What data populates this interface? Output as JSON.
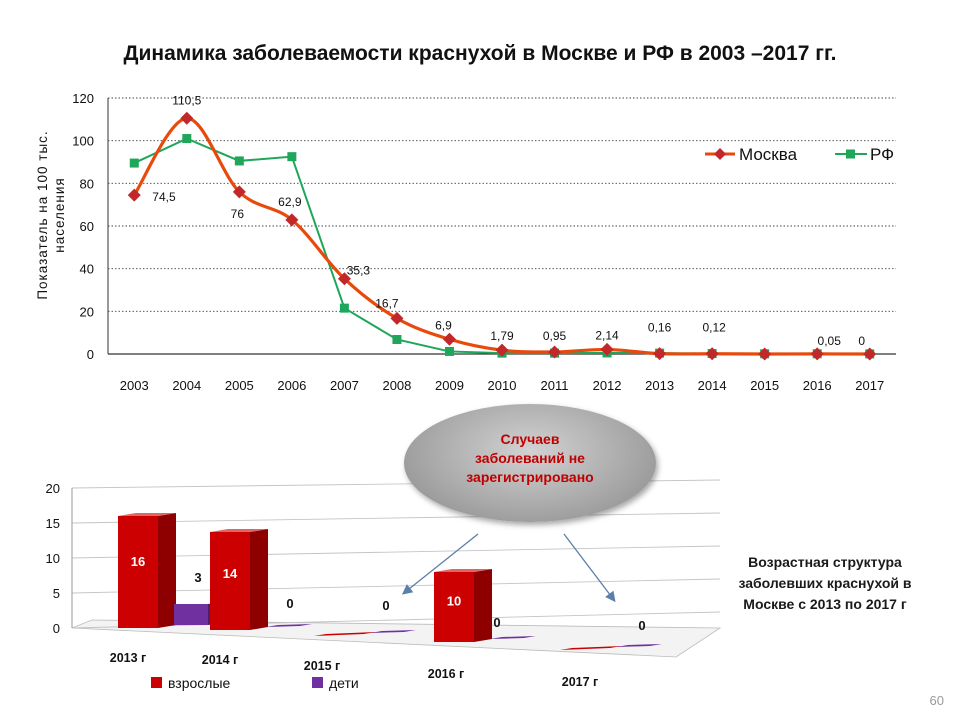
{
  "title": "Динамика заболеваемости краснухой в Москве и РФ в 2003 –2017 гг.",
  "y_axis_label": [
    "Показатель на 100 тыс.",
    "населения"
  ],
  "bubble_lines": [
    "Случаев",
    "заболеваний не",
    "зарегистрировано"
  ],
  "side_note": [
    "Возрастная структура",
    "заболевших краснухой в",
    "Москве с 2013 по 2017 г"
  ],
  "page_number": "60",
  "colors": {
    "moscow": "#e84a0c",
    "moscow_marker": "#c0282a",
    "rf": "#1ea65a",
    "adults": "#cc0000",
    "children": "#7030a0"
  },
  "chart_data": [
    {
      "type": "line",
      "x": [
        "2003",
        "2004",
        "2005",
        "2006",
        "2007",
        "2008",
        "2009",
        "2010",
        "2011",
        "2012",
        "2013",
        "2014",
        "2015",
        "2016",
        "2017"
      ],
      "series": [
        {
          "name": "Москва",
          "values": [
            74.5,
            110.5,
            76,
            62.9,
            35.3,
            16.7,
            6.9,
            1.79,
            0.95,
            2.14,
            0.16,
            0.12,
            0,
            0.05,
            0
          ],
          "labels": [
            "74,5",
            "110,5",
            "76",
            "62,9",
            "35,3",
            "16,7",
            "6,9",
            "1,79",
            "0,95",
            "2,14",
            "0,16",
            "0,12",
            "",
            "0,05",
            "0"
          ]
        },
        {
          "name": "РФ",
          "values": [
            89.5,
            101,
            90.5,
            92.5,
            21.5,
            6.8,
            1.2,
            0.4,
            0.4,
            0.5,
            0.4,
            0.2,
            0.1,
            0.1,
            0.05
          ]
        }
      ],
      "ylim": [
        0,
        120
      ],
      "yticks": [
        0,
        20,
        40,
        60,
        80,
        100,
        120
      ],
      "grid": true,
      "legend": "right"
    },
    {
      "type": "bar",
      "categories": [
        "2013 г",
        "2014 г",
        "2015 г",
        "2016 г",
        "2017 г"
      ],
      "series": [
        {
          "name": "взрослые",
          "values": [
            16,
            14,
            0,
            10,
            0
          ],
          "labels": [
            "16",
            "14",
            "",
            "10",
            ""
          ]
        },
        {
          "name": "дети",
          "values": [
            3,
            0,
            0,
            0,
            0
          ],
          "labels": [
            "3",
            "",
            "0",
            "0",
            "0"
          ]
        }
      ],
      "ylim": [
        0,
        20
      ],
      "yticks": [
        0,
        5,
        10,
        15,
        20
      ],
      "grid": true,
      "legend": "bottom"
    }
  ]
}
